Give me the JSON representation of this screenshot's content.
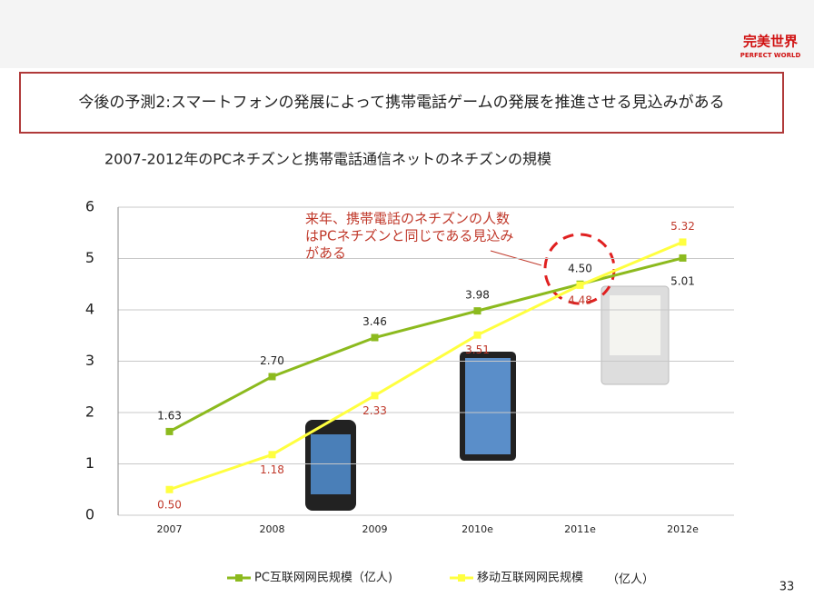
{
  "slide_title": "今後の予測2:スマートフォンの発展によって携帯電話ゲームの発展を推進させる見込みがある",
  "logo": {
    "name": "完美世界",
    "subtitle": "PERFECT WORLD"
  },
  "page_number": "33",
  "chart_data": {
    "type": "line",
    "title": "2007-2012年のPCネチズンと携帯電話通信ネットのネチズンの規模",
    "annotation": [
      "来年、携帯電話のネチズンの人数",
      "はPCネチズンと同じである見込み",
      "がある"
    ],
    "categories": [
      "2007",
      "2008",
      "2009",
      "2010e",
      "2011e",
      "2012e"
    ],
    "series": [
      {
        "name": "PC互联网网民规模（亿人)",
        "color": "#8cba1e",
        "label_color": "#222222",
        "values": [
          1.63,
          2.7,
          3.46,
          3.98,
          4.5,
          5.01
        ],
        "value_labels": [
          "1.63",
          "2.70",
          "3.46",
          "3.98",
          "4.50",
          "5.01"
        ]
      },
      {
        "name": "移动互联网网民规模",
        "color": "#ffff40",
        "label_color": "#c0392b",
        "values": [
          0.5,
          1.18,
          2.33,
          3.51,
          4.48,
          5.32
        ],
        "value_labels": [
          "0.50",
          "1.18",
          "2.33",
          "3.51",
          "4.48",
          "5.32"
        ]
      }
    ],
    "legend_unit": "（亿人）",
    "ylim": [
      0,
      6
    ],
    "yticks": [
      0,
      1,
      2,
      3,
      4,
      5,
      6
    ],
    "grid": true
  }
}
